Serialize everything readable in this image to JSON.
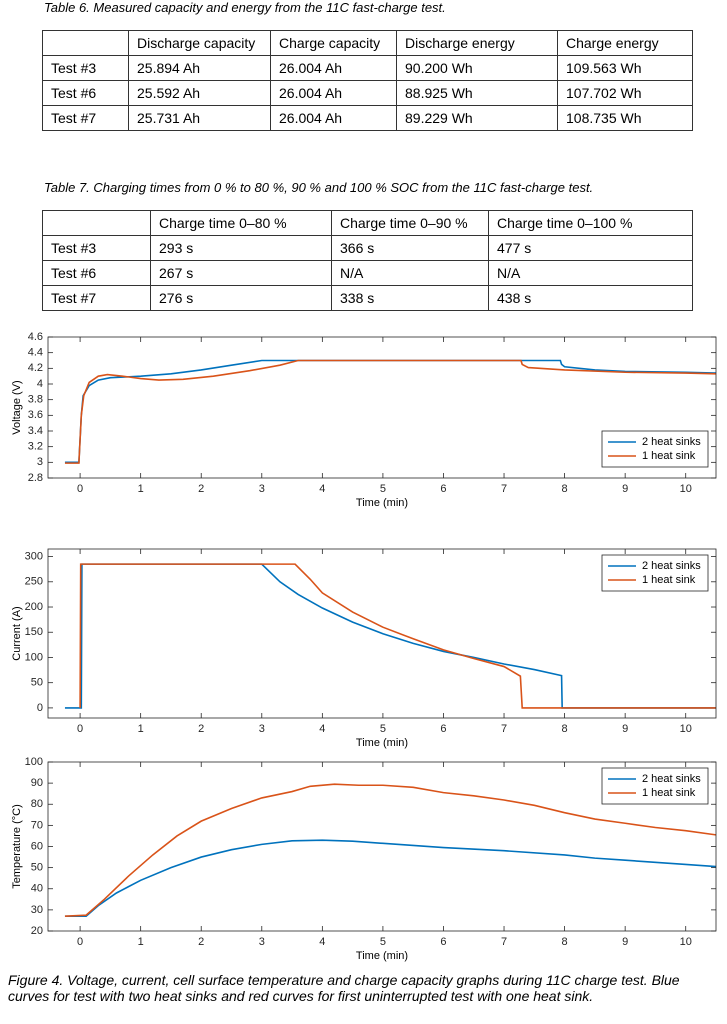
{
  "tables": [
    {
      "caption": "Table 6. Measured capacity and energy from the 11C fast-charge test.",
      "header": [
        "Discharge capacity",
        "Charge capacity",
        "Discharge energy",
        "Charge energy"
      ],
      "rows": [
        [
          "Test #3",
          "25.894 Ah",
          "26.004 Ah",
          "90.200 Wh",
          "109.563 Wh"
        ],
        [
          "Test #6",
          "25.592 Ah",
          "26.004 Ah",
          "88.925 Wh",
          "107.702 Wh"
        ],
        [
          "Test #7",
          "25.731 Ah",
          "26.004 Ah",
          "89.229 Wh",
          "108.735 Wh"
        ]
      ]
    },
    {
      "caption": "Table 7. Charging times from 0 % to 80 %, 90 % and 100 % SOC from the 11C fast-charge test.",
      "header": [
        "Charge time 0–80 %",
        "Charge time 0–90 %",
        "Charge time 0–100 %"
      ],
      "rows": [
        [
          "Test #3",
          "293 s",
          "366 s",
          "477 s"
        ],
        [
          "Test #6",
          "267 s",
          "N/A",
          "N/A"
        ],
        [
          "Test #7",
          "276 s",
          "338 s",
          "438 s"
        ]
      ]
    }
  ],
  "chart_data": [
    {
      "type": "line",
      "xlabel": "Time (min)",
      "ylabel": "Voltage (V)",
      "xlim": [
        -0.53,
        10.5
      ],
      "xticks": [
        0,
        1,
        2,
        3,
        4,
        5,
        6,
        7,
        8,
        9,
        10
      ],
      "ylim": [
        2.8,
        4.6
      ],
      "yticks": [
        2.8,
        3,
        3.2,
        3.4,
        3.6,
        3.8,
        4,
        4.2,
        4.4,
        4.6
      ],
      "legend": "lower right",
      "grid": false,
      "series": [
        {
          "name": "2 heat sinks",
          "color": "#0072bd",
          "x": [
            -0.25,
            -0.02,
            0.0,
            0.02,
            0.05,
            0.15,
            0.3,
            0.5,
            1.0,
            1.5,
            2.0,
            2.5,
            3.0,
            3.5,
            7.93,
            7.95,
            8.0,
            8.5,
            9,
            10,
            10.5
          ],
          "values": [
            3.0,
            3.0,
            3.3,
            3.6,
            3.85,
            3.98,
            4.05,
            4.08,
            4.1,
            4.13,
            4.18,
            4.24,
            4.3,
            4.3,
            4.3,
            4.25,
            4.22,
            4.18,
            4.16,
            4.15,
            4.14
          ]
        },
        {
          "name": "1 heat sink",
          "color": "#d95319",
          "x": [
            -0.25,
            -0.02,
            0.02,
            0.06,
            0.15,
            0.3,
            0.45,
            0.7,
            1.0,
            1.3,
            1.7,
            2.2,
            2.8,
            3.3,
            3.6,
            7.28,
            7.3,
            7.4,
            8,
            9,
            10,
            10.5
          ],
          "values": [
            2.99,
            2.99,
            3.6,
            3.85,
            4.02,
            4.1,
            4.12,
            4.1,
            4.07,
            4.05,
            4.06,
            4.1,
            4.17,
            4.24,
            4.3,
            4.3,
            4.25,
            4.21,
            4.18,
            4.15,
            4.14,
            4.13
          ]
        }
      ]
    },
    {
      "type": "line",
      "xlabel": "Time (min)",
      "ylabel": "Current (A)",
      "xlim": [
        -0.53,
        10.5
      ],
      "xticks": [
        0,
        1,
        2,
        3,
        4,
        5,
        6,
        7,
        8,
        9,
        10
      ],
      "ylim": [
        -20,
        315
      ],
      "yticks": [
        0,
        50,
        100,
        150,
        200,
        250,
        300
      ],
      "legend": "upper right",
      "grid": false,
      "series": [
        {
          "name": "2 heat sinks",
          "color": "#0072bd",
          "x": [
            -0.25,
            0.02,
            0.03,
            3.0,
            3.3,
            3.6,
            4,
            4.5,
            5,
            5.5,
            6,
            6.5,
            7,
            7.5,
            7.95,
            7.96,
            10.5
          ],
          "values": [
            0,
            0,
            285,
            285,
            250,
            225,
            198,
            170,
            147,
            128,
            112,
            100,
            87,
            76,
            64,
            0,
            0
          ]
        },
        {
          "name": "1 heat sink",
          "color": "#d95319",
          "x": [
            0.0,
            0.01,
            3.55,
            3.8,
            4,
            4.5,
            5,
            5.5,
            6,
            6.5,
            7,
            7.27,
            7.3,
            10.5
          ],
          "values": [
            0,
            285,
            285,
            255,
            228,
            190,
            160,
            137,
            115,
            98,
            82,
            63,
            0,
            0
          ]
        }
      ]
    },
    {
      "type": "line",
      "xlabel": "Time (min)",
      "ylabel": "Temperature (°C)",
      "xlim": [
        -0.53,
        10.5
      ],
      "xticks": [
        0,
        1,
        2,
        3,
        4,
        5,
        6,
        7,
        8,
        9,
        10
      ],
      "ylim": [
        20,
        100
      ],
      "yticks": [
        20,
        30,
        40,
        50,
        60,
        70,
        80,
        90,
        100
      ],
      "legend": "upper right",
      "grid": false,
      "series": [
        {
          "name": "2 heat sinks",
          "color": "#0072bd",
          "x": [
            -0.25,
            0.1,
            0.3,
            0.6,
            1,
            1.5,
            2,
            2.5,
            3,
            3.5,
            4,
            4.5,
            5,
            6,
            7,
            8,
            8.5,
            9,
            10,
            10.5
          ],
          "values": [
            27,
            27,
            32,
            38,
            44,
            50,
            55,
            58.5,
            61,
            62.7,
            63,
            62.5,
            61.5,
            59.5,
            58,
            56,
            54.5,
            53.5,
            51.5,
            50.5
          ]
        },
        {
          "name": "1 heat sink",
          "color": "#d95319",
          "x": [
            -0.25,
            0.1,
            0.4,
            0.8,
            1.2,
            1.6,
            2,
            2.5,
            3,
            3.5,
            3.8,
            4.2,
            4.6,
            5,
            5.5,
            6,
            6.5,
            7,
            7.5,
            8,
            8.5,
            9,
            9.5,
            10,
            10.5
          ],
          "values": [
            27,
            27.5,
            35,
            46,
            56,
            65,
            72,
            78,
            83,
            86,
            88.5,
            89.5,
            89,
            89,
            88,
            85.5,
            84,
            82,
            79.5,
            76,
            73,
            71,
            69,
            67.5,
            65.5
          ]
        }
      ]
    }
  ],
  "figure_caption": "Figure 4. Voltage, current, cell surface temperature and charge capacity graphs during 11C charge test. Blue curves for test with two heat sinks and red curves for first uninterrupted test with one heat sink."
}
